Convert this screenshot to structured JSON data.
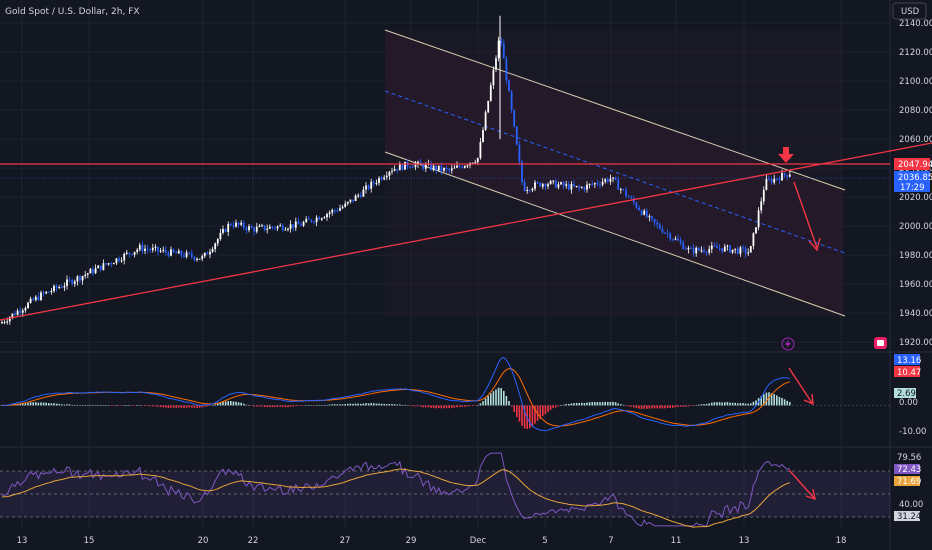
{
  "header": {
    "title": "Gold Spot / U.S. Dollar, 2h, FX",
    "currency": "USD"
  },
  "colors": {
    "background": "#131722",
    "up": "#ffffff",
    "down": "#2962ff",
    "trend": "#f23645",
    "channel": "#e6dcc0",
    "macd": "#2962ff",
    "signal": "#ff6d00",
    "rsi": "#7e57c2",
    "rsi_ma": "#e8a33a"
  },
  "chart_data": [
    {
      "type": "candlestick",
      "symbol": "Gold Spot / U.S. Dollar",
      "interval": "2h",
      "x_ticks": [
        "13",
        "15",
        "20",
        "22",
        "27",
        "29",
        "Dec",
        "5",
        "7",
        "11",
        "13",
        "18"
      ],
      "y_ticks": [
        "2140.00",
        "2120.00",
        "2100.00",
        "2080.00",
        "2060.00",
        "2040.00",
        "2020.00",
        "2000.00",
        "1980.00",
        "1960.00",
        "1940.00",
        "1920.00"
      ],
      "ylim": [
        1916,
        2149
      ],
      "anchors": [
        [
          "13",
          1933
        ],
        [
          "14",
          1952
        ],
        [
          "15",
          1968
        ],
        [
          "17",
          1985
        ],
        [
          "20",
          1978
        ],
        [
          "21",
          2002
        ],
        [
          "22",
          1998
        ],
        [
          "24",
          2001
        ],
        [
          "27",
          2014
        ],
        [
          "28",
          2039
        ],
        [
          "29",
          2043
        ],
        [
          "30",
          2038
        ],
        [
          "Dec",
          2047
        ],
        [
          "2",
          2132
        ],
        [
          "4",
          2026
        ],
        [
          "5",
          2030
        ],
        [
          "6",
          2026
        ],
        [
          "7",
          2033
        ],
        [
          "8",
          2004
        ],
        [
          "11",
          1983
        ],
        [
          "12",
          1985
        ],
        [
          "13",
          1982
        ],
        [
          "14",
          2030
        ],
        [
          "15",
          2036.85
        ]
      ],
      "last_price": "2036.85",
      "last_price_countdown": "17:29",
      "resistance_level": "2047.94",
      "annotations": [
        "horizontal resistance",
        "ascending trendline",
        "descending channel",
        "projected move down"
      ]
    },
    {
      "type": "line",
      "indicator": "MACD",
      "macd": "13.16",
      "signal": "10.47",
      "histogram": "2.69",
      "y_ticks": [
        "0.00",
        "-10.00"
      ],
      "ylim": [
        -14,
        20
      ]
    },
    {
      "type": "line",
      "indicator": "RSI",
      "rsi": "72.43",
      "rsi_ma": "71.69",
      "levels": [
        "79.56",
        "40.00",
        "31.24"
      ],
      "ylim": [
        22,
        92
      ]
    }
  ]
}
